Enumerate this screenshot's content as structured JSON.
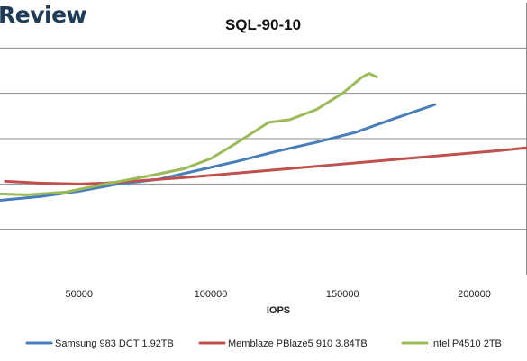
{
  "brand": {
    "text": "Review"
  },
  "chart_data": {
    "type": "line",
    "title": "SQL-90-10",
    "xlabel": "IOPS",
    "ylabel": "",
    "xlim": [
      20000,
      220000
    ],
    "ylim": [
      0,
      6
    ],
    "x_ticks": [
      50000,
      100000,
      150000,
      200000
    ],
    "x_tick_labels": [
      "50000",
      "100000",
      "150000",
      "200000"
    ],
    "y_gridlines": [
      1,
      2,
      3,
      4,
      5
    ],
    "grid": true,
    "legend_position": "bottom",
    "series": [
      {
        "name": "Samsung 983 DCT 1.92TB",
        "color": "#4a7ebb",
        "points": [
          [
            20000,
            1.64
          ],
          [
            35000,
            1.72
          ],
          [
            50000,
            1.84
          ],
          [
            65000,
            2.0
          ],
          [
            80000,
            2.1
          ],
          [
            95000,
            2.3
          ],
          [
            110000,
            2.5
          ],
          [
            125000,
            2.72
          ],
          [
            140000,
            2.92
          ],
          [
            155000,
            3.14
          ],
          [
            170000,
            3.45
          ],
          [
            185000,
            3.75
          ]
        ]
      },
      {
        "name": "Memblaze PBlaze5 910 3.84TB",
        "color": "#c0504d",
        "points": [
          [
            22000,
            2.06
          ],
          [
            35000,
            2.02
          ],
          [
            50000,
            2.0
          ],
          [
            60000,
            2.02
          ],
          [
            70000,
            2.06
          ],
          [
            90000,
            2.14
          ],
          [
            110000,
            2.24
          ],
          [
            130000,
            2.34
          ],
          [
            150000,
            2.44
          ],
          [
            170000,
            2.54
          ],
          [
            190000,
            2.64
          ],
          [
            210000,
            2.74
          ],
          [
            220000,
            2.8
          ]
        ]
      },
      {
        "name": "Intel P4510 2TB",
        "color": "#9bbb59",
        "points": [
          [
            20000,
            1.78
          ],
          [
            30000,
            1.76
          ],
          [
            45000,
            1.82
          ],
          [
            60000,
            2.0
          ],
          [
            75000,
            2.16
          ],
          [
            90000,
            2.34
          ],
          [
            100000,
            2.56
          ],
          [
            108000,
            2.84
          ],
          [
            115000,
            3.1
          ],
          [
            122000,
            3.36
          ],
          [
            130000,
            3.42
          ],
          [
            140000,
            3.64
          ],
          [
            150000,
            4.0
          ],
          [
            157000,
            4.34
          ],
          [
            160000,
            4.44
          ],
          [
            163000,
            4.36
          ]
        ]
      }
    ]
  }
}
